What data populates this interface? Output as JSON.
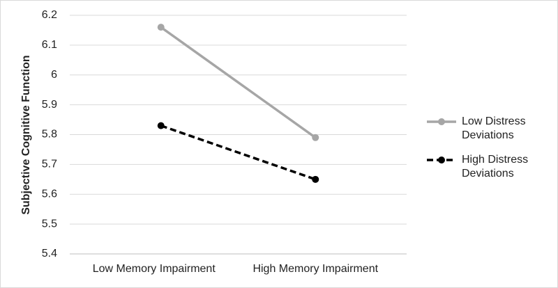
{
  "chart_data": {
    "type": "line",
    "y_label": "Subjective Cognitive Function",
    "categories": [
      "Low Memory Impairment",
      "High Memory Impairment"
    ],
    "series": [
      {
        "name": "Low Distress Deviations",
        "color": "#a6a6a6",
        "dash": false,
        "values": [
          6.16,
          5.79
        ]
      },
      {
        "name": "High Distress Deviations",
        "color": "#000000",
        "dash": true,
        "values": [
          5.83,
          5.65
        ]
      }
    ],
    "ylim": [
      5.4,
      6.2
    ],
    "yticks": [
      5.4,
      5.5,
      5.6,
      5.7,
      5.8,
      5.9,
      6,
      6.1,
      6.2
    ],
    "grid": true,
    "legend": "right"
  }
}
